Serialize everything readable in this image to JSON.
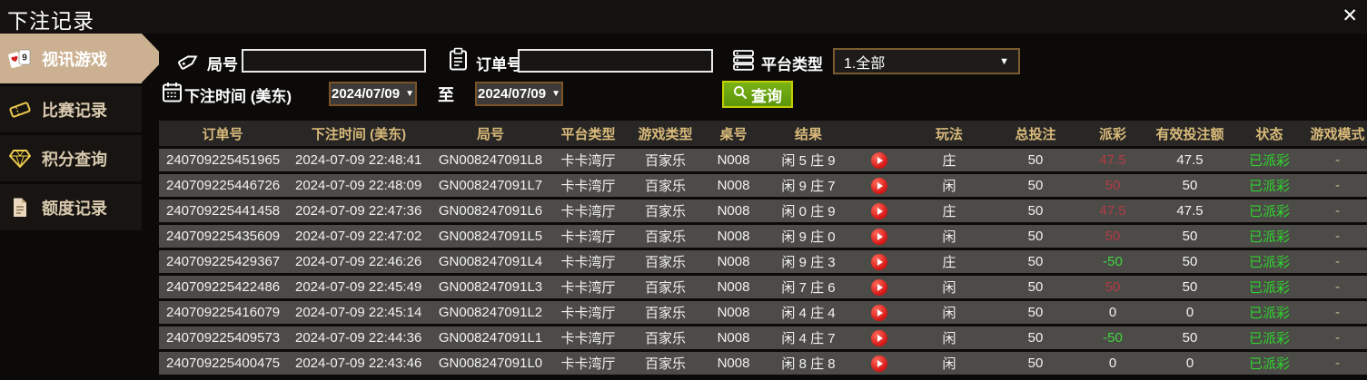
{
  "window": {
    "title": "下注记录",
    "close_glyph": "✕"
  },
  "sidebar": {
    "items": [
      {
        "label": "视讯游戏",
        "icon": "playing-cards-icon",
        "active": true
      },
      {
        "label": "比赛记录",
        "icon": "ticket-icon",
        "active": false
      },
      {
        "label": "积分查询",
        "icon": "diamond-icon",
        "active": false
      },
      {
        "label": "额度记录",
        "icon": "document-icon",
        "active": false
      }
    ]
  },
  "filters": {
    "round_label": "局号",
    "round_value": "",
    "order_label": "订单号",
    "order_value": "",
    "platform_label": "平台类型",
    "platform_value": "1.全部",
    "bet_time_label": "下注时间 (美东)",
    "date_from": "2024/07/09",
    "date_to": "2024/07/09",
    "to_label": "至",
    "query_label": "查询",
    "dropdown_arrow": "▼"
  },
  "table": {
    "headers": [
      "订单号",
      "下注时间 (美东)",
      "局号",
      "平台类型",
      "游戏类型",
      "桌号",
      "结果",
      "",
      "玩法",
      "总投注",
      "派彩",
      "有效投注额",
      "状态",
      "游戏模式"
    ],
    "rows": [
      {
        "order_no": "240709225451965",
        "bet_time": "2024-07-09 22:48:41",
        "round_no": "GN008247091L8",
        "platform": "卡卡湾厅",
        "game_type": "百家乐",
        "table_no": "N008",
        "result": "闲 5 庄 9",
        "play": "庄",
        "total_bet": "50",
        "payout": "47.5",
        "payout_color": "red",
        "valid_bet": "47.5",
        "status": "已派彩",
        "mode": "-"
      },
      {
        "order_no": "240709225446726",
        "bet_time": "2024-07-09 22:48:09",
        "round_no": "GN008247091L7",
        "platform": "卡卡湾厅",
        "game_type": "百家乐",
        "table_no": "N008",
        "result": "闲 9 庄 7",
        "play": "闲",
        "total_bet": "50",
        "payout": "50",
        "payout_color": "red",
        "valid_bet": "50",
        "status": "已派彩",
        "mode": "-"
      },
      {
        "order_no": "240709225441458",
        "bet_time": "2024-07-09 22:47:36",
        "round_no": "GN008247091L6",
        "platform": "卡卡湾厅",
        "game_type": "百家乐",
        "table_no": "N008",
        "result": "闲 0 庄 9",
        "play": "庄",
        "total_bet": "50",
        "payout": "47.5",
        "payout_color": "red",
        "valid_bet": "47.5",
        "status": "已派彩",
        "mode": "-"
      },
      {
        "order_no": "240709225435609",
        "bet_time": "2024-07-09 22:47:02",
        "round_no": "GN008247091L5",
        "platform": "卡卡湾厅",
        "game_type": "百家乐",
        "table_no": "N008",
        "result": "闲 9 庄 0",
        "play": "闲",
        "total_bet": "50",
        "payout": "50",
        "payout_color": "red",
        "valid_bet": "50",
        "status": "已派彩",
        "mode": "-"
      },
      {
        "order_no": "240709225429367",
        "bet_time": "2024-07-09 22:46:26",
        "round_no": "GN008247091L4",
        "platform": "卡卡湾厅",
        "game_type": "百家乐",
        "table_no": "N008",
        "result": "闲 9 庄 3",
        "play": "庄",
        "total_bet": "50",
        "payout": "-50",
        "payout_color": "green",
        "valid_bet": "50",
        "status": "已派彩",
        "mode": "-"
      },
      {
        "order_no": "240709225422486",
        "bet_time": "2024-07-09 22:45:49",
        "round_no": "GN008247091L3",
        "platform": "卡卡湾厅",
        "game_type": "百家乐",
        "table_no": "N008",
        "result": "闲 7 庄 6",
        "play": "闲",
        "total_bet": "50",
        "payout": "50",
        "payout_color": "red",
        "valid_bet": "50",
        "status": "已派彩",
        "mode": "-"
      },
      {
        "order_no": "240709225416079",
        "bet_time": "2024-07-09 22:45:14",
        "round_no": "GN008247091L2",
        "platform": "卡卡湾厅",
        "game_type": "百家乐",
        "table_no": "N008",
        "result": "闲 4 庄 4",
        "play": "闲",
        "total_bet": "50",
        "payout": "0",
        "payout_color": "white",
        "valid_bet": "0",
        "status": "已派彩",
        "mode": "-"
      },
      {
        "order_no": "240709225409573",
        "bet_time": "2024-07-09 22:44:36",
        "round_no": "GN008247091L1",
        "platform": "卡卡湾厅",
        "game_type": "百家乐",
        "table_no": "N008",
        "result": "闲 4 庄 7",
        "play": "闲",
        "total_bet": "50",
        "payout": "-50",
        "payout_color": "green",
        "valid_bet": "50",
        "status": "已派彩",
        "mode": "-"
      },
      {
        "order_no": "240709225400475",
        "bet_time": "2024-07-09 22:43:46",
        "round_no": "GN008247091L0",
        "platform": "卡卡湾厅",
        "game_type": "百家乐",
        "table_no": "N008",
        "result": "闲 8 庄 8",
        "play": "闲",
        "total_bet": "50",
        "payout": "0",
        "payout_color": "white",
        "valid_bet": "0",
        "status": "已派彩",
        "mode": "-"
      }
    ]
  },
  "colors": {
    "accent_tan": "#cbb191",
    "header_gold": "#d9ba7a",
    "payout_positive_red": "#b23b44",
    "payout_negative_green": "#3dd53d",
    "status_green": "#2ed42e",
    "query_button_green": "#67a00f"
  }
}
